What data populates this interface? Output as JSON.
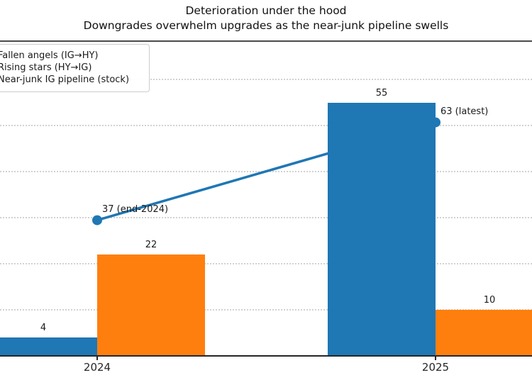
{
  "title": "Deterioration under the hood",
  "subtitle": "Downgrades overwhelm upgrades as the near-junk pipeline swells",
  "legend": {
    "items": [
      {
        "label": "Fallen angels (IG→HY)",
        "color": "#1f77b4",
        "kind": "bar"
      },
      {
        "label": "Rising stars (HY→IG)",
        "color": "#ff7f0e",
        "kind": "bar"
      },
      {
        "label": "Near-junk IG pipeline (stock)",
        "color": "#1f77b4",
        "kind": "line"
      }
    ]
  },
  "chart_data": {
    "type": "bar",
    "title": "Deterioration under the hood",
    "subtitle": "Downgrades overwhelm upgrades as the near-junk pipeline swells",
    "categories": [
      "2024",
      "2025"
    ],
    "series": [
      {
        "name": "Fallen angels (IG→HY)",
        "chart_type": "bar",
        "color": "#1f77b4",
        "axis": "primary",
        "values": [
          4,
          55
        ]
      },
      {
        "name": "Rising stars (HY→IG)",
        "chart_type": "bar",
        "color": "#ff7f0e",
        "axis": "primary",
        "values": [
          22,
          10
        ]
      },
      {
        "name": "Near-junk IG pipeline (stock)",
        "chart_type": "line",
        "color": "#1f77b4",
        "axis": "secondary",
        "values": [
          37,
          63
        ],
        "point_labels": [
          "37 (end-2024)",
          "63 (latest)"
        ]
      }
    ],
    "xlabel": "",
    "ylabel": "",
    "ylim_primary": [
      0,
      68
    ],
    "ylim_secondary": [
      0,
      85
    ],
    "grid": "horizontal dotted, every 10 units (primary axis)",
    "legend_position": "upper left (clipped at left edge)",
    "colors": {
      "blue": "#1f77b4",
      "orange": "#ff7f0e",
      "grid": "#d2d2d2",
      "axis": "#262626"
    }
  }
}
